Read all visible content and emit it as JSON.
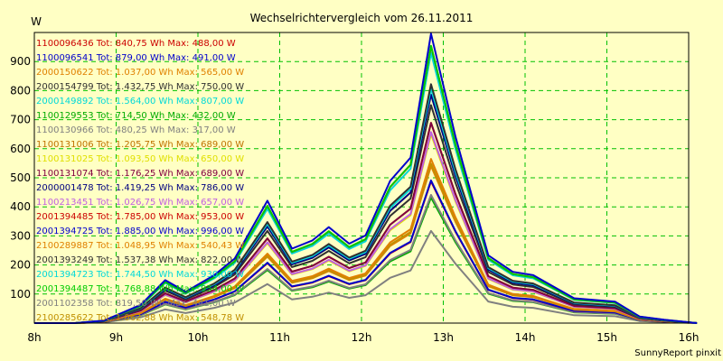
{
  "chart_data": {
    "type": "line",
    "title": "Wechselrichtervergleich vom 26.11.2011",
    "ylabel": "W",
    "xlabel": "",
    "x_ticks": [
      "8h",
      "9h",
      "10h",
      "11h",
      "12h",
      "13h",
      "14h",
      "15h",
      "16h"
    ],
    "y_ticks": [
      100,
      200,
      300,
      400,
      500,
      600,
      700,
      800,
      900
    ],
    "xlim": [
      8,
      16
    ],
    "ylim": [
      0,
      1000
    ],
    "grid": true,
    "legend_position": "top-left",
    "credit": "SunnyReport pinxit",
    "x": [
      8.0,
      8.5,
      8.85,
      9.3,
      9.6,
      9.85,
      10.2,
      10.45,
      10.85,
      11.15,
      11.4,
      11.6,
      11.85,
      12.05,
      12.35,
      12.6,
      12.85,
      13.15,
      13.55,
      13.85,
      14.1,
      14.6,
      15.1,
      15.4,
      15.7,
      16.1
    ],
    "base": [
      0,
      0,
      3,
      22,
      52,
      38,
      58,
      78,
      148,
      90,
      100,
      116,
      96,
      106,
      172,
      200,
      350,
      225,
      82,
      62,
      58,
      30,
      26,
      8,
      4,
      0
    ],
    "series": [
      {
        "name": "1100096436 Tot: 840,75 Wh Max: 488,00 W",
        "color": "#cc0000",
        "max": 488
      },
      {
        "name": "1100096541 Tot: 879,00 Wh Max: 491,00 W",
        "color": "#0000cc",
        "max": 491
      },
      {
        "name": "2000150622 Tot: 1.037,00 Wh Max: 565,00 W",
        "color": "#e08000",
        "max": 565
      },
      {
        "name": "2000154799 Tot: 1.432,75 Wh Max: 750,00 W",
        "color": "#303030",
        "max": 750
      },
      {
        "name": "2000149892 Tot: 1.564,00 Wh Max: 807,00 W",
        "color": "#00d8d8",
        "max": 807
      },
      {
        "name": "1100129553 Tot: 714,50 Wh Max: 432,00 W",
        "color": "#00aa00",
        "max": 432
      },
      {
        "name": "1100130966 Tot: 480,25 Wh Max: 317,00 W",
        "color": "#808080",
        "max": 317
      },
      {
        "name": "1100131006 Tot: 1.205,75 Wh Max: 689,00 W",
        "color": "#c07000",
        "max": 689
      },
      {
        "name": "1100131025 Tot: 1.093,50 Wh Max: 650,00 W",
        "color": "#e0e000",
        "max": 650
      },
      {
        "name": "1100131074 Tot: 1.176,25 Wh Max: 689,00 W",
        "color": "#800040",
        "max": 689
      },
      {
        "name": "2000001478 Tot: 1.419,25 Wh Max: 786,00 W",
        "color": "#000080",
        "max": 786
      },
      {
        "name": "1100213451 Tot: 1.026,75 Wh Max: 657,00 W",
        "color": "#c060e0",
        "max": 657
      },
      {
        "name": "2001394485 Tot: 1.785,00 Wh Max: 953,00 W",
        "color": "#cc0000",
        "max": 953
      },
      {
        "name": "2001394725 Tot: 1.885,00 Wh Max: 996,00 W",
        "color": "#0000cc",
        "max": 996
      },
      {
        "name": "2100289887 Tot: 1.048,95 Wh Max: 540,43 W",
        "color": "#e08000",
        "max": 540.43
      },
      {
        "name": "2001393249 Tot: 1.537,38 Wh Max: 822,00 W",
        "color": "#303030",
        "max": 822
      },
      {
        "name": "2001394723 Tot: 1.744,50 Wh Max: 930,00 W",
        "color": "#00d8d8",
        "max": 930
      },
      {
        "name": "2001394487 Tot: 1.768,88 Wh Max: 954,00 W",
        "color": "#00cc00",
        "max": 954
      },
      {
        "name": "2001102358 Tot: 819,50 Wh Max: 441,00 W",
        "color": "#808080",
        "max": 441
      },
      {
        "name": "2100285622 Tot: 1.062,88 Wh Max: 548,78 W",
        "color": "#c09000",
        "max": 548.78
      }
    ]
  }
}
